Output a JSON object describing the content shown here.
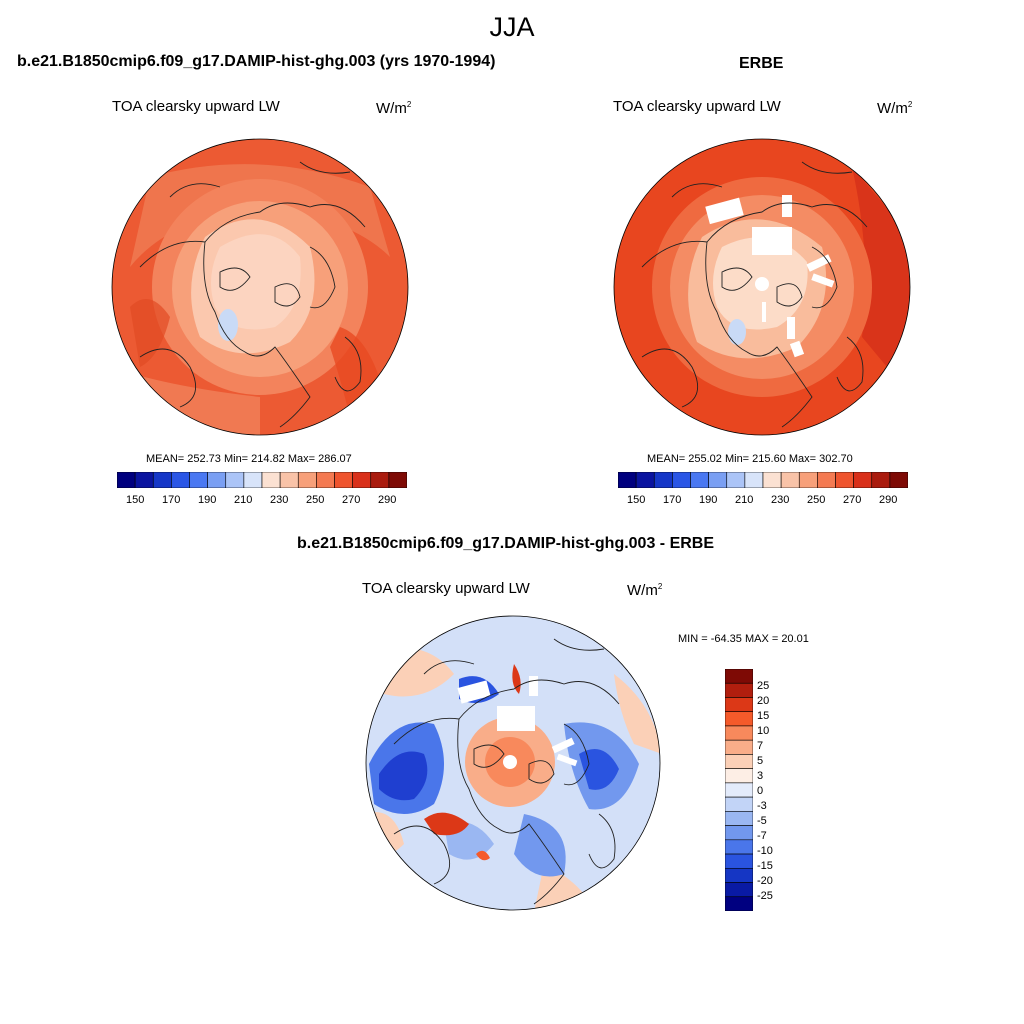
{
  "title": "JJA",
  "panels": [
    {
      "header": "b.e21.B1850cmip6.f09_g17.DAMIP-hist-ghg.003 (yrs 1970-1994)",
      "variable": "TOA clearsky upward LW",
      "units_base": "W/m",
      "units_exp": "2",
      "stats": "MEAN= 252.73  Min= 214.82  Max= 286.07"
    },
    {
      "header": "ERBE",
      "variable": "TOA clearsky upward LW",
      "units_base": "W/m",
      "units_exp": "2",
      "stats": "MEAN= 255.02  Min= 215.60  Max= 302.70"
    },
    {
      "header": "b.e21.B1850cmip6.f09_g17.DAMIP-hist-ghg.003 - ERBE",
      "variable": "TOA clearsky upward LW",
      "units_base": "W/m",
      "units_exp": "2",
      "stats": "MIN = -64.35 MAX =  20.01"
    }
  ],
  "colorbar_abs": {
    "labels": [
      "150",
      "170",
      "190",
      "210",
      "230",
      "250",
      "270",
      "290"
    ],
    "colors": [
      "#00007f",
      "#0a14a0",
      "#1537c8",
      "#2a56e6",
      "#4a78f2",
      "#7a9ff3",
      "#abc4f7",
      "#d8e4fa",
      "#fbe1d2",
      "#f9c3a8",
      "#f7a07a",
      "#f47a52",
      "#ef542e",
      "#d9301a",
      "#aa1b0e",
      "#7e0a05"
    ]
  },
  "colorbar_diff": {
    "labels": [
      "25",
      "20",
      "15",
      "10",
      "7",
      "5",
      "3",
      "0",
      "-3",
      "-5",
      "-7",
      "-10",
      "-15",
      "-20",
      "-25"
    ],
    "colors": [
      "#7e0a05",
      "#b11e0e",
      "#dc3817",
      "#f55a2a",
      "#f8895c",
      "#f9ad89",
      "#fbd0b7",
      "#fdeee5",
      "#e3ebfb",
      "#c2d4f7",
      "#9ab7f2",
      "#7298ee",
      "#4a76ea",
      "#2a54e0",
      "#1536c4",
      "#091aa4",
      "#000080"
    ]
  }
}
